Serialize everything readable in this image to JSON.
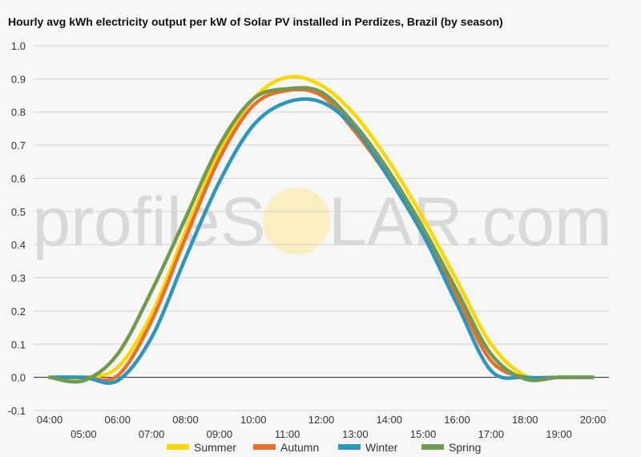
{
  "title": "Hourly avg kWh electricity output per kW of Solar PV installed in Perdizes, Brazil (by season)",
  "watermark": {
    "left": "profileS",
    "right": "LAR.com",
    "sun_color": "#fbeec0"
  },
  "chart_data": {
    "type": "line",
    "title": "Hourly avg kWh electricity output per kW of Solar PV installed in Perdizes, Brazil (by season)",
    "xlabel": "",
    "ylabel": "",
    "x": [
      "04:00",
      "05:00",
      "06:00",
      "07:00",
      "08:00",
      "09:00",
      "10:00",
      "11:00",
      "12:00",
      "13:00",
      "14:00",
      "15:00",
      "16:00",
      "17:00",
      "18:00",
      "19:00",
      "20:00"
    ],
    "ylim": [
      -0.1,
      1.0
    ],
    "yticks": [
      "-0.1",
      "0.0",
      "0.1",
      "0.2",
      "0.3",
      "0.4",
      "0.5",
      "0.6",
      "0.7",
      "0.8",
      "0.9",
      "1.0"
    ],
    "grid": true,
    "legend_position": "bottom",
    "series": [
      {
        "name": "Summer",
        "color": "#ffd700",
        "values": [
          0,
          0,
          0.03,
          0.19,
          0.44,
          0.68,
          0.84,
          0.905,
          0.88,
          0.79,
          0.65,
          0.48,
          0.29,
          0.1,
          0.005,
          0,
          0
        ]
      },
      {
        "name": "Autumn",
        "color": "#e8702a",
        "values": [
          0,
          0,
          0.005,
          0.17,
          0.42,
          0.66,
          0.82,
          0.865,
          0.85,
          0.74,
          0.6,
          0.43,
          0.24,
          0.05,
          0,
          0,
          0
        ]
      },
      {
        "name": "Winter",
        "color": "#2b96c1",
        "values": [
          0,
          0,
          -0.01,
          0.12,
          0.36,
          0.59,
          0.76,
          0.83,
          0.83,
          0.75,
          0.6,
          0.43,
          0.22,
          0.02,
          0,
          0,
          0
        ]
      },
      {
        "name": "Spring",
        "color": "#6f9a50",
        "values": [
          0,
          -0.01,
          0.07,
          0.26,
          0.48,
          0.7,
          0.84,
          0.87,
          0.86,
          0.76,
          0.62,
          0.45,
          0.26,
          0.07,
          -0.005,
          0,
          0
        ]
      }
    ]
  }
}
